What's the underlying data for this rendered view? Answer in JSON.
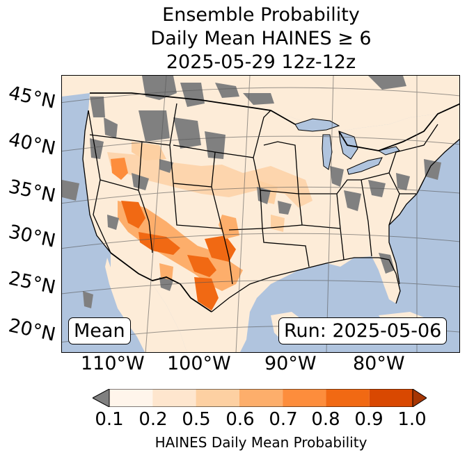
{
  "title": {
    "line1": "Ensemble Probability",
    "line2": "Daily Mean HAINES ≥ 6",
    "line3": "2025-05-29 12z-12z"
  },
  "map": {
    "latitude_labels": [
      "45°N",
      "40°N",
      "35°N",
      "30°N",
      "25°N",
      "20°N"
    ],
    "longitude_labels": [
      "110°W",
      "100°W",
      "90°W",
      "80°W"
    ],
    "stat_box": "Mean",
    "run_box": "Run: 2025-05-06",
    "colors": {
      "ocean": "#b0c4de",
      "land_base": "#fdecd8",
      "no_data": "#808080",
      "borders": "#000000"
    }
  },
  "colorbar": {
    "ticks": [
      "0.1",
      "0.2",
      "0.5",
      "0.6",
      "0.7",
      "0.8",
      "0.9",
      "1.0"
    ],
    "colors": [
      "#fff5eb",
      "#fee6ce",
      "#fdd0a2",
      "#fdae6b",
      "#fd8d3c",
      "#f16913",
      "#d94801",
      "#a63603"
    ],
    "under_color": "#808080",
    "label": "HAINES Daily Mean Probability"
  }
}
